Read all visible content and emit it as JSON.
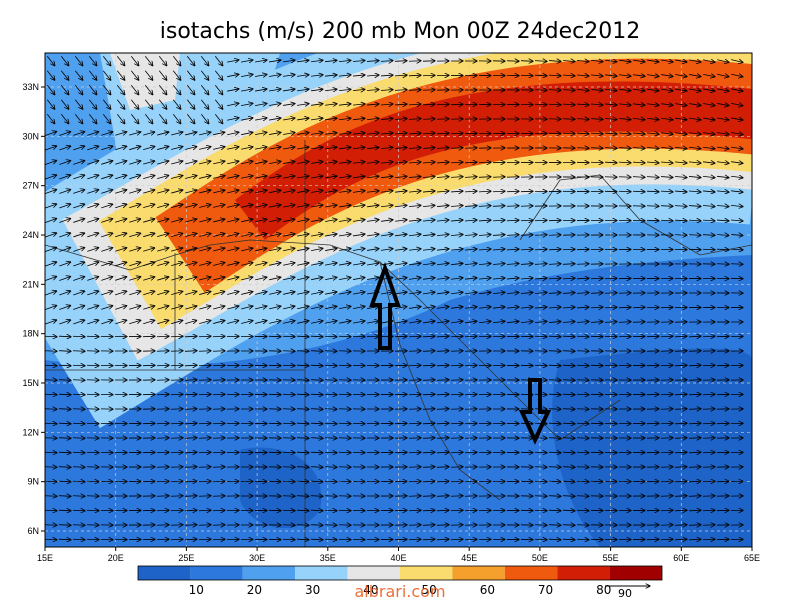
{
  "title": "isotachs (m/s) 200 mb Mon 00Z 24dec2012",
  "x_axis": {
    "labels": [
      "15E",
      "20E",
      "25E",
      "30E",
      "35E",
      "40E",
      "45E",
      "50E",
      "55E",
      "60E",
      "65E"
    ]
  },
  "y_axis": {
    "labels": [
      "6N",
      "9N",
      "12N",
      "15N",
      "18N",
      "21N",
      "24N",
      "27N",
      "30N",
      "33N"
    ]
  },
  "colorbar": {
    "labels": [
      "10",
      "20",
      "30",
      "40",
      "50",
      "60",
      "70",
      "80"
    ],
    "colors": [
      "#1e64c8",
      "#2d78dc",
      "#50a0f0",
      "#96d2fa",
      "#e6e6e6",
      "#fadc6e",
      "#f5a02d",
      "#ef5a0f",
      "#d21e05",
      "#a00000"
    ]
  },
  "vector_reference": "90",
  "watermark": "albrari.com"
}
